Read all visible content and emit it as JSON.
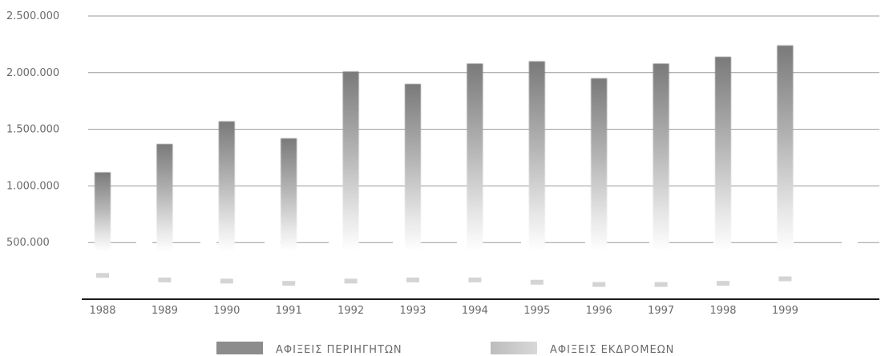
{
  "chart_data": {
    "type": "bar",
    "title": "",
    "xlabel": "",
    "ylabel": "",
    "categories": [
      "1988",
      "1989",
      "1990",
      "1991",
      "1992",
      "1993",
      "1994",
      "1995",
      "1996",
      "1997",
      "1998",
      "1999"
    ],
    "series": [
      {
        "name": "ΑΦΙΞΕΙΣ ΠΕΡΙΗΓΗΤΩΝ",
        "values": [
          1120000,
          1370000,
          1570000,
          1420000,
          2010000,
          1900000,
          2080000,
          2100000,
          1950000,
          2080000,
          2140000,
          2240000
        ],
        "color": "#8c8c8c"
      },
      {
        "name": "ΑΦΙΞΕΙΣ ΕΚΔΡΟΜΕΩΝ",
        "values": [
          210000,
          170000,
          160000,
          140000,
          160000,
          170000,
          170000,
          150000,
          130000,
          130000,
          140000,
          180000
        ],
        "color": "#c8c8c8"
      }
    ],
    "ylim": [
      0,
      2500000
    ],
    "yticks": [
      500000,
      1000000,
      1500000,
      2000000,
      2500000
    ],
    "ytick_labels": [
      "500.000",
      "1.000.000",
      "1.500.000",
      "2.000.000",
      "2.500.000"
    ],
    "grid": true,
    "legend_position": "bottom"
  }
}
